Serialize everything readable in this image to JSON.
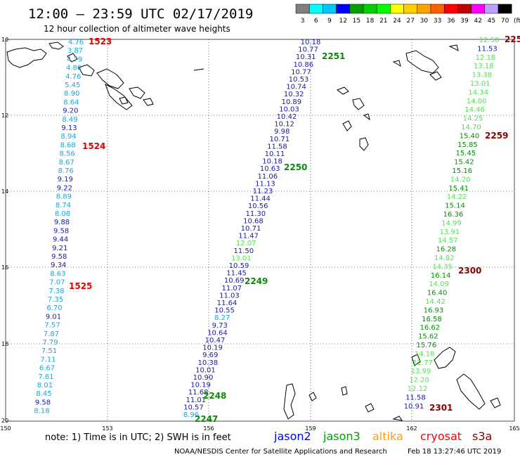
{
  "header": {
    "title": "12:00 – 23:59 UTC 02/17/2019",
    "subtitle": "12 hour collection of altimeter wave heights"
  },
  "color_scale": {
    "labels": [
      "3",
      "6",
      "9",
      "12",
      "15",
      "18",
      "21",
      "24",
      "27",
      "30",
      "33",
      "36",
      "39",
      "42",
      "45",
      "70",
      "(ft)"
    ],
    "colors": [
      "#7f7f7f",
      "#00ffff",
      "#00c8ff",
      "#0000ff",
      "#00a000",
      "#00d000",
      "#00ff00",
      "#ffff00",
      "#ffd000",
      "#ffa000",
      "#ff6000",
      "#ff0000",
      "#c00000",
      "#ff00ff",
      "#c0a0ff",
      "#000000"
    ]
  },
  "map": {
    "lon_labels": [
      "150",
      "153",
      "156",
      "159",
      "162",
      "165"
    ],
    "lat_labels": [
      "10",
      "12",
      "14",
      "16",
      "18",
      "20"
    ],
    "grid": "dotted"
  },
  "colors": {
    "cyan": "#1aa7d6",
    "blue": "#1a1aa0",
    "lightgreen": "#55e055",
    "green": "#0a8a0a",
    "red": "#e00000",
    "darkred": "#8a0000"
  },
  "tracks": [
    {
      "name": "left",
      "values": [
        {
          "v": "4.76",
          "c": "cyan"
        },
        {
          "v": "3.87",
          "c": "cyan"
        },
        {
          "v": "4.79",
          "c": "cyan"
        },
        {
          "v": "4.80",
          "c": "cyan"
        },
        {
          "v": "4.76",
          "c": "cyan"
        },
        {
          "v": "5.45",
          "c": "cyan"
        },
        {
          "v": "8.90",
          "c": "cyan"
        },
        {
          "v": "8.64",
          "c": "cyan"
        },
        {
          "v": "9.20",
          "c": "blue"
        },
        {
          "v": "8.49",
          "c": "cyan"
        },
        {
          "v": "9.13",
          "c": "blue"
        },
        {
          "v": "8.94",
          "c": "cyan"
        },
        {
          "v": "8.68",
          "c": "cyan"
        },
        {
          "v": "8.56",
          "c": "cyan"
        },
        {
          "v": "8.67",
          "c": "cyan"
        },
        {
          "v": "8.76",
          "c": "cyan"
        },
        {
          "v": "9.19",
          "c": "blue"
        },
        {
          "v": "9.22",
          "c": "blue"
        },
        {
          "v": "8.89",
          "c": "cyan"
        },
        {
          "v": "8.74",
          "c": "cyan"
        },
        {
          "v": "8.08",
          "c": "cyan"
        },
        {
          "v": "9.88",
          "c": "blue"
        },
        {
          "v": "9.58",
          "c": "blue"
        },
        {
          "v": "9.44",
          "c": "blue"
        },
        {
          "v": "9.21",
          "c": "blue"
        },
        {
          "v": "9.58",
          "c": "blue"
        },
        {
          "v": "9.34",
          "c": "blue"
        },
        {
          "v": "8.63",
          "c": "cyan"
        },
        {
          "v": "7.07",
          "c": "cyan"
        },
        {
          "v": "7.38",
          "c": "cyan"
        },
        {
          "v": "7.35",
          "c": "cyan"
        },
        {
          "v": "6.70",
          "c": "cyan"
        },
        {
          "v": "9.01",
          "c": "blue"
        },
        {
          "v": "7.57",
          "c": "cyan"
        },
        {
          "v": "7.87",
          "c": "cyan"
        },
        {
          "v": "7.79",
          "c": "cyan"
        },
        {
          "v": "7.51",
          "c": "cyan"
        },
        {
          "v": "7.11",
          "c": "cyan"
        },
        {
          "v": "6.67",
          "c": "cyan"
        },
        {
          "v": "7.61",
          "c": "cyan"
        },
        {
          "v": "8.01",
          "c": "cyan"
        },
        {
          "v": "8.45",
          "c": "cyan"
        },
        {
          "v": "9.58",
          "c": "blue"
        },
        {
          "v": "8.18",
          "c": "cyan"
        }
      ]
    },
    {
      "name": "middle",
      "values": [
        {
          "v": "10.18",
          "c": "blue"
        },
        {
          "v": "10.77",
          "c": "blue"
        },
        {
          "v": "10.31",
          "c": "blue"
        },
        {
          "v": "10.86",
          "c": "blue"
        },
        {
          "v": "10.77",
          "c": "blue"
        },
        {
          "v": "10.53",
          "c": "blue"
        },
        {
          "v": "10.74",
          "c": "blue"
        },
        {
          "v": "10.32",
          "c": "blue"
        },
        {
          "v": "10.89",
          "c": "blue"
        },
        {
          "v": "10.03",
          "c": "blue"
        },
        {
          "v": "10.42",
          "c": "blue"
        },
        {
          "v": "10.12",
          "c": "blue"
        },
        {
          "v": "9.98",
          "c": "blue"
        },
        {
          "v": "10.71",
          "c": "blue"
        },
        {
          "v": "11.58",
          "c": "blue"
        },
        {
          "v": "10.11",
          "c": "blue"
        },
        {
          "v": "10.18",
          "c": "blue"
        },
        {
          "v": "10.63",
          "c": "blue"
        },
        {
          "v": "11.06",
          "c": "blue"
        },
        {
          "v": "11.13",
          "c": "blue"
        },
        {
          "v": "11.23",
          "c": "blue"
        },
        {
          "v": "11.44",
          "c": "blue"
        },
        {
          "v": "10.56",
          "c": "blue"
        },
        {
          "v": "11.30",
          "c": "blue"
        },
        {
          "v": "10.68",
          "c": "blue"
        },
        {
          "v": "10.71",
          "c": "blue"
        },
        {
          "v": "11.47",
          "c": "blue"
        },
        {
          "v": "12.07",
          "c": "lightgreen"
        },
        {
          "v": "11.50",
          "c": "blue"
        },
        {
          "v": "13.01",
          "c": "lightgreen"
        },
        {
          "v": "10.59",
          "c": "blue"
        },
        {
          "v": "11.45",
          "c": "blue"
        },
        {
          "v": "10.69",
          "c": "blue"
        },
        {
          "v": "11.07",
          "c": "blue"
        },
        {
          "v": "11.03",
          "c": "blue"
        },
        {
          "v": "11.64",
          "c": "blue"
        },
        {
          "v": "10.55",
          "c": "blue"
        },
        {
          "v": "8.27",
          "c": "cyan"
        },
        {
          "v": "9.73",
          "c": "blue"
        },
        {
          "v": "10.64",
          "c": "blue"
        },
        {
          "v": "10.47",
          "c": "blue"
        },
        {
          "v": "10.19",
          "c": "blue"
        },
        {
          "v": "9.69",
          "c": "blue"
        },
        {
          "v": "10.38",
          "c": "blue"
        },
        {
          "v": "10.01",
          "c": "blue"
        },
        {
          "v": "10.90",
          "c": "blue"
        },
        {
          "v": "10.19",
          "c": "blue"
        },
        {
          "v": "11.68",
          "c": "blue"
        },
        {
          "v": "11.01",
          "c": "blue"
        },
        {
          "v": "10.57",
          "c": "blue"
        },
        {
          "v": "8.96",
          "c": "cyan"
        }
      ]
    },
    {
      "name": "right",
      "values": [
        {
          "v": "12.50",
          "c": "lightgreen"
        },
        {
          "v": "11.53",
          "c": "blue"
        },
        {
          "v": "12.18",
          "c": "lightgreen"
        },
        {
          "v": "13.18",
          "c": "lightgreen"
        },
        {
          "v": "13.38",
          "c": "lightgreen"
        },
        {
          "v": "13.01",
          "c": "lightgreen"
        },
        {
          "v": "14.34",
          "c": "lightgreen"
        },
        {
          "v": "14.00",
          "c": "lightgreen"
        },
        {
          "v": "14.46",
          "c": "lightgreen"
        },
        {
          "v": "14.25",
          "c": "lightgreen"
        },
        {
          "v": "14.70",
          "c": "lightgreen"
        },
        {
          "v": "15.40",
          "c": "green"
        },
        {
          "v": "15.85",
          "c": "green"
        },
        {
          "v": "15.45",
          "c": "green"
        },
        {
          "v": "15.42",
          "c": "green"
        },
        {
          "v": "15.16",
          "c": "green"
        },
        {
          "v": "14.20",
          "c": "lightgreen"
        },
        {
          "v": "15.41",
          "c": "green"
        },
        {
          "v": "14.22",
          "c": "lightgreen"
        },
        {
          "v": "15.14",
          "c": "green"
        },
        {
          "v": "16.36",
          "c": "green"
        },
        {
          "v": "14.99",
          "c": "lightgreen"
        },
        {
          "v": "13.91",
          "c": "lightgreen"
        },
        {
          "v": "14.57",
          "c": "lightgreen"
        },
        {
          "v": "16.28",
          "c": "green"
        },
        {
          "v": "14.82",
          "c": "lightgreen"
        },
        {
          "v": "14.35",
          "c": "lightgreen"
        },
        {
          "v": "16.14",
          "c": "green"
        },
        {
          "v": "14.09",
          "c": "lightgreen"
        },
        {
          "v": "16.40",
          "c": "green"
        },
        {
          "v": "14.42",
          "c": "lightgreen"
        },
        {
          "v": "16.93",
          "c": "green"
        },
        {
          "v": "16.58",
          "c": "green"
        },
        {
          "v": "16.62",
          "c": "green"
        },
        {
          "v": "15.62",
          "c": "green"
        },
        {
          "v": "15.76",
          "c": "green"
        },
        {
          "v": "14.18",
          "c": "lightgreen"
        },
        {
          "v": "12.77",
          "c": "lightgreen"
        },
        {
          "v": "13.99",
          "c": "lightgreen"
        },
        {
          "v": "12.20",
          "c": "lightgreen"
        },
        {
          "v": "12.12",
          "c": "lightgreen"
        },
        {
          "v": "11.58",
          "c": "blue"
        },
        {
          "v": "10.91",
          "c": "blue"
        }
      ]
    }
  ],
  "time_labels": [
    {
      "text": "1523",
      "c": "red"
    },
    {
      "text": "1524",
      "c": "red"
    },
    {
      "text": "1525",
      "c": "red"
    },
    {
      "text": "2251",
      "c": "green"
    },
    {
      "text": "2250",
      "c": "green"
    },
    {
      "text": "2249",
      "c": "green"
    },
    {
      "text": "2248",
      "c": "green"
    },
    {
      "text": "2247",
      "c": "green"
    },
    {
      "text": "225",
      "c": "darkred"
    },
    {
      "text": "2259",
      "c": "darkred"
    },
    {
      "text": "2300",
      "c": "darkred"
    },
    {
      "text": "2301",
      "c": "darkred"
    }
  ],
  "footer": {
    "note": "note: 1) Time is in UTC; 2) SWH is in feet",
    "legend": [
      {
        "label": "jason2",
        "color": "#0000ff"
      },
      {
        "label": "jason3",
        "color": "#00a000"
      },
      {
        "label": "altika",
        "color": "#ffa000"
      },
      {
        "label": "cryosat",
        "color": "#ff0000"
      },
      {
        "label": "s3a",
        "color": "#8a0000"
      }
    ],
    "credit": "NOAA/NESDIS Center for Satellite Applications and Research",
    "timestamp": "Feb 18 13:27:46 UTC 2019"
  }
}
